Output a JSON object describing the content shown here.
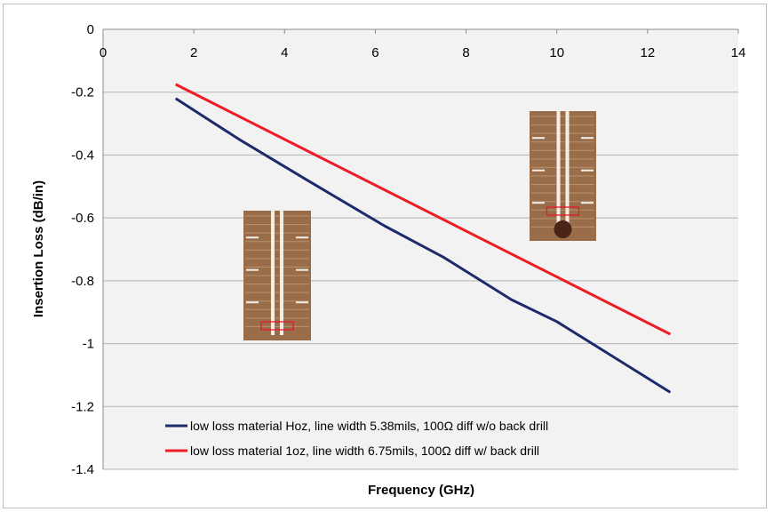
{
  "chart_data": {
    "type": "line",
    "xlabel": "Frequency (GHz)",
    "ylabel": "Insertion Loss (dB/in)",
    "xlim": [
      0,
      14
    ],
    "ylim": [
      -1.4,
      0
    ],
    "x_ticks": [
      "0",
      "2",
      "4",
      "6",
      "8",
      "10",
      "12",
      "14"
    ],
    "y_ticks": [
      "0",
      "-0.2",
      "-0.4",
      "-0.6",
      "-0.8",
      "-1",
      "-1.2",
      "-1.4"
    ],
    "x_axis_position": "top",
    "grid": "horizontal",
    "legend_position": "bottom-inside",
    "series": [
      {
        "name": "low loss material Hoz, line width 5.38mils, 100Ω diff w/o back drill",
        "color": "#1f2a6b",
        "x": [
          1.6,
          3.0,
          4.5,
          6.2,
          7.5,
          9.0,
          10.0,
          11.0,
          12.5
        ],
        "y": [
          -0.22,
          -0.35,
          -0.48,
          -0.625,
          -0.725,
          -0.86,
          -0.93,
          -1.02,
          -1.155
        ]
      },
      {
        "name": "low loss material 1oz, line width 6.75mils, 100Ω diff w/ back drill",
        "color": "#ee1c24",
        "x": [
          1.6,
          12.5
        ],
        "y": [
          -0.175,
          -0.97
        ]
      }
    ],
    "insets": [
      {
        "name": "cross-section-photo-1",
        "highlight": "red box near bottom"
      },
      {
        "name": "cross-section-photo-2",
        "highlight": "red box near stub"
      }
    ]
  },
  "colors": {
    "grid": "#b3b3b3",
    "plot_bg": "#f2f2f2",
    "highlight": "#e8192c",
    "pcb": "#9a6d4a",
    "trace": "#f4efe6"
  }
}
